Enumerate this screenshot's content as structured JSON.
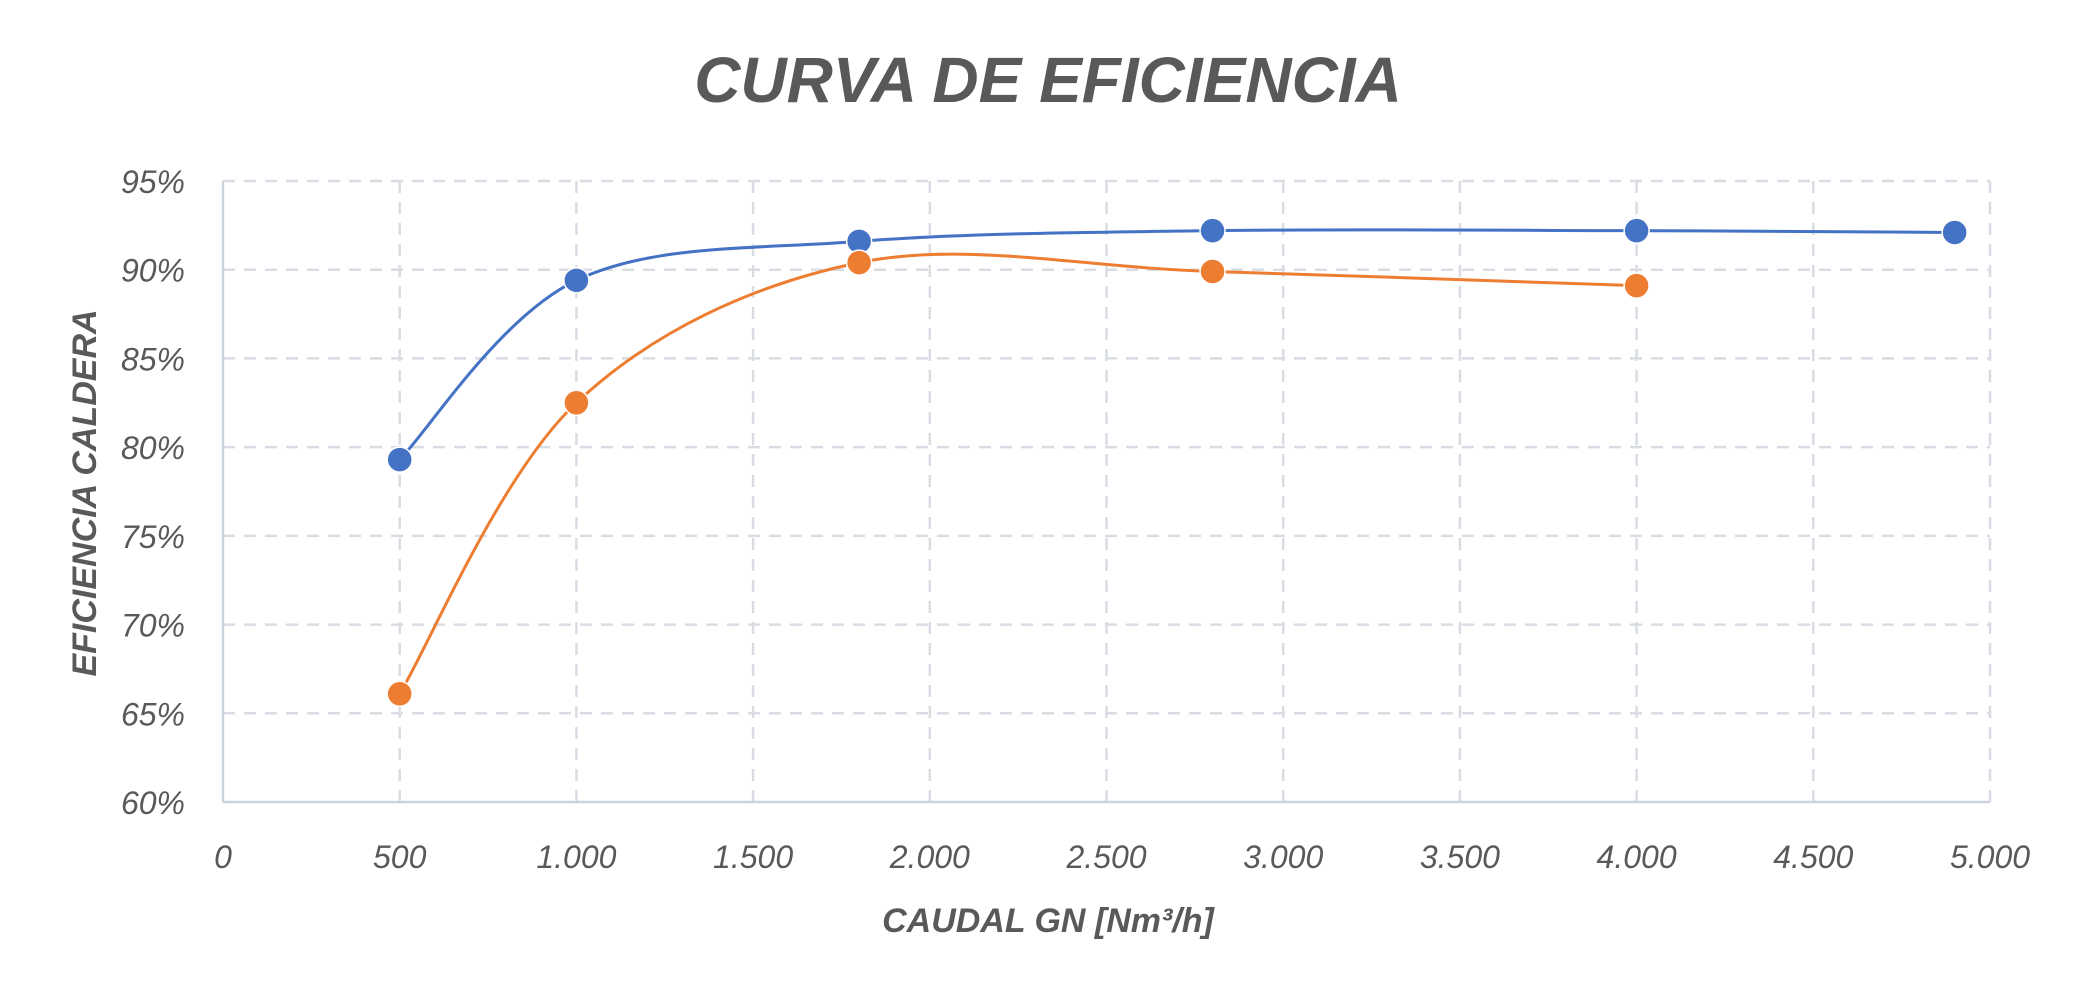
{
  "chart_data": {
    "type": "scatter",
    "title": "CURVA DE EFICIENCIA",
    "xlabel": "CAUDAL GN [Nm³/h]",
    "ylabel": "EFICIENCIA CALDERA",
    "xlim": [
      0,
      5000
    ],
    "ylim": [
      0.6,
      0.95
    ],
    "x_ticks": [
      0,
      500,
      1000,
      1500,
      2000,
      2500,
      3000,
      3500,
      4000,
      4500,
      5000
    ],
    "x_tick_labels": [
      "0",
      "500",
      "1.000",
      "1.500",
      "2.000",
      "2.500",
      "3.000",
      "3.500",
      "4.000",
      "4.500",
      "5.000"
    ],
    "y_ticks": [
      0.6,
      0.65,
      0.7,
      0.75,
      0.8,
      0.85,
      0.9,
      0.95
    ],
    "y_tick_labels": [
      "60%",
      "65%",
      "70%",
      "75%",
      "80%",
      "85%",
      "90%",
      "95%"
    ],
    "grid": true,
    "smooth": true,
    "legend": "none",
    "series": [
      {
        "color": "#4472c4",
        "x": [
          500,
          1000,
          1800,
          2800,
          4000,
          4900
        ],
        "y": [
          0.793,
          0.894,
          0.916,
          0.922,
          0.922,
          0.921
        ]
      },
      {
        "color": "#ed7d31",
        "x": [
          500,
          1000,
          1800,
          2800,
          4000
        ],
        "y": [
          0.661,
          0.825,
          0.904,
          0.899,
          0.891
        ]
      }
    ]
  }
}
